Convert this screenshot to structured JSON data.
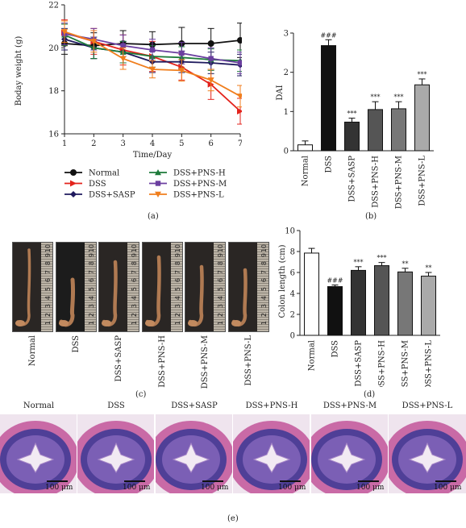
{
  "panels": {
    "a": "(a)",
    "b": "(b)",
    "c": "(c)",
    "d": "(d)",
    "e": "(e)"
  },
  "colors": {
    "normal": "#111111",
    "dss": "#e3231c",
    "sasp": "#1f1a5e",
    "pns_h": "#1d7a3a",
    "pns_m": "#6b3fa0",
    "pns_l": "#f07e1d"
  },
  "chart_data": [
    {
      "type": "line",
      "ylabel": "Boday weight (g)",
      "xlabel": "Time/Day",
      "x": [
        1,
        2,
        3,
        4,
        5,
        6,
        7
      ],
      "xticks": [
        "1",
        "2",
        "3",
        "4",
        "5",
        "6",
        "7"
      ],
      "yticks": [
        "16",
        "18",
        "20",
        "22"
      ],
      "ylim": [
        16,
        22
      ],
      "series": [
        {
          "name": "Normal",
          "color": "#111111",
          "marker": "circle",
          "values": [
            20.2,
            20.1,
            20.2,
            20.15,
            20.2,
            20.2,
            20.35
          ],
          "err": [
            0.5,
            0.6,
            0.6,
            0.6,
            0.75,
            0.7,
            0.8
          ]
        },
        {
          "name": "DSS",
          "color": "#e3231c",
          "marker": "triangle-right",
          "values": [
            20.7,
            20.3,
            19.9,
            19.6,
            19.1,
            18.3,
            17.05
          ],
          "err": [
            0.6,
            0.6,
            0.7,
            0.7,
            0.6,
            0.7,
            0.6
          ]
        },
        {
          "name": "DSS+SASP",
          "color": "#1f1a5e",
          "marker": "diamond",
          "values": [
            20.4,
            20.0,
            19.8,
            19.35,
            19.35,
            19.3,
            19.2
          ],
          "err": [
            0.5,
            0.5,
            0.5,
            0.5,
            0.5,
            0.5,
            0.5
          ]
        },
        {
          "name": "DSS+PNS-H",
          "color": "#1d7a3a",
          "marker": "triangle-up",
          "values": [
            20.6,
            20.0,
            19.8,
            19.6,
            19.55,
            19.45,
            19.4
          ],
          "err": [
            0.5,
            0.5,
            0.5,
            0.5,
            0.5,
            0.5,
            0.5
          ]
        },
        {
          "name": "DSS+PNS-M",
          "color": "#6b3fa0",
          "marker": "square",
          "values": [
            20.65,
            20.4,
            20.1,
            19.9,
            19.75,
            19.5,
            19.3
          ],
          "err": [
            0.5,
            0.5,
            0.5,
            0.5,
            0.5,
            0.5,
            0.5
          ]
        },
        {
          "name": "DSS+PNS-L",
          "color": "#f07e1d",
          "marker": "triangle-down",
          "values": [
            20.75,
            20.3,
            19.5,
            19.0,
            18.95,
            18.5,
            17.75
          ],
          "err": [
            0.5,
            0.5,
            0.5,
            0.4,
            0.5,
            0.5,
            0.5
          ]
        }
      ],
      "legend": "bottom"
    },
    {
      "type": "bar",
      "ylabel": "DAI",
      "categories": [
        "Normal",
        "DSS",
        "DSS+SASP",
        "DSS+PNS-H",
        "DSS+PNS-M",
        "DSS+PNS-L"
      ],
      "values": [
        0.15,
        2.68,
        0.73,
        1.05,
        1.07,
        1.68
      ],
      "err": [
        0.1,
        0.15,
        0.1,
        0.2,
        0.18,
        0.15
      ],
      "annotations": [
        "",
        "###",
        "***",
        "***",
        "***",
        "***"
      ],
      "fills": [
        "#ffffff",
        "#111111",
        "#333333",
        "#555555",
        "#777777",
        "#aaaaaa"
      ],
      "yticks": [
        "0",
        "1",
        "2",
        "3"
      ],
      "ylim": [
        0,
        3
      ]
    },
    {
      "type": "bar",
      "ylabel": "Colon length (cm)",
      "categories": [
        "Normal",
        "DSS",
        "DSS+SASP",
        "DSS+PNS-H",
        "DSS+PNS-M",
        "DSS+PNS-L"
      ],
      "values": [
        7.85,
        4.65,
        6.2,
        6.65,
        6.05,
        5.65
      ],
      "err": [
        0.45,
        0.15,
        0.35,
        0.3,
        0.35,
        0.35
      ],
      "annotations": [
        "",
        "###",
        "***",
        "***",
        "**",
        "**"
      ],
      "fills": [
        "#ffffff",
        "#111111",
        "#333333",
        "#555555",
        "#777777",
        "#aaaaaa"
      ],
      "yticks": [
        "0",
        "2",
        "4",
        "6",
        "8",
        "10"
      ],
      "ylim": [
        0,
        10
      ]
    }
  ],
  "colon_photos": {
    "labels": [
      "Normal",
      "DSS",
      "DSS+SASP",
      "DSS+PNS-H",
      "DSS+PNS-M",
      "DSS+PNS-L"
    ],
    "ruler_numbers": [
      "10",
      "9",
      "8",
      "7",
      "6",
      "5",
      "4",
      "3",
      "2",
      "1"
    ]
  },
  "histology": {
    "labels": [
      "Normal",
      "DSS",
      "DSS+SASP",
      "DSS+PNS-H",
      "DSS+PNS-M",
      "DSS+PNS-L"
    ],
    "scale_label": "100 μm"
  }
}
